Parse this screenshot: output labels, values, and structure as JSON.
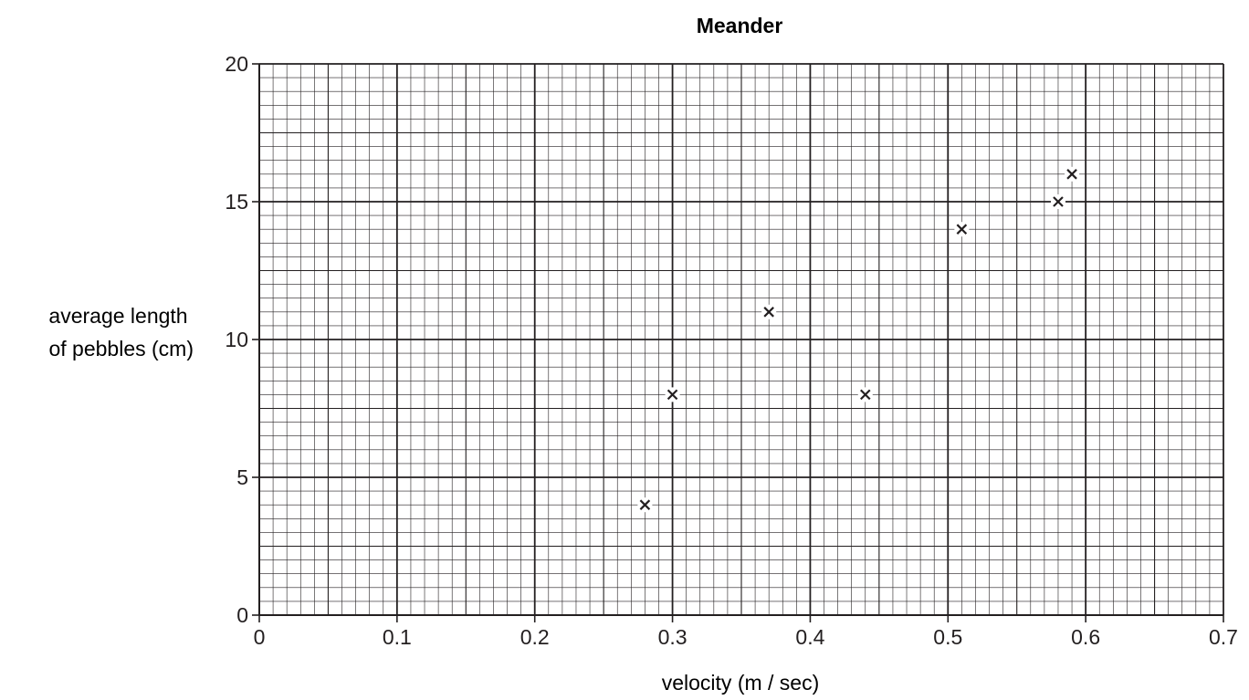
{
  "chart_data": {
    "type": "scatter",
    "title": "Meander",
    "xlabel": "velocity (m / sec)",
    "ylabel_lines": [
      "average length",
      "of pebbles (cm)"
    ],
    "xlim": [
      0,
      0.7
    ],
    "ylim": [
      0,
      20
    ],
    "x_ticks": [
      "0",
      "0.1",
      "0.2",
      "0.3",
      "0.4",
      "0.5",
      "0.6",
      "0.7"
    ],
    "y_ticks": [
      "0",
      "5",
      "10",
      "15",
      "20"
    ],
    "grid": "graph-paper",
    "marker": "x",
    "points": [
      {
        "x": 0.28,
        "y": 4
      },
      {
        "x": 0.3,
        "y": 8
      },
      {
        "x": 0.37,
        "y": 11
      },
      {
        "x": 0.44,
        "y": 8
      },
      {
        "x": 0.51,
        "y": 14
      },
      {
        "x": 0.58,
        "y": 15
      },
      {
        "x": 0.59,
        "y": 16
      }
    ],
    "colors": {
      "ink": "#231f20",
      "background": "#ffffff"
    }
  }
}
